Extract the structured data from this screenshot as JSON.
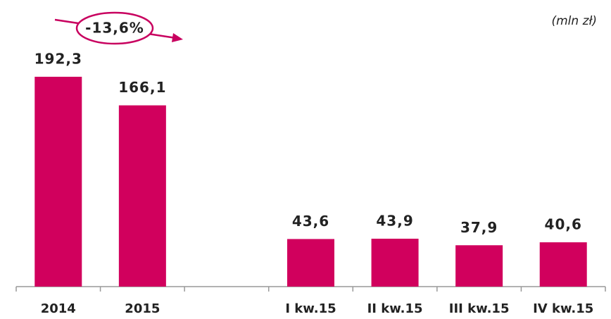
{
  "chart_data": {
    "type": "bar",
    "unit_label": "(mln zł)",
    "annotation": "-13,6%",
    "categories": [
      "2014",
      "2015",
      null,
      "I kw.15",
      "II kw.15",
      "III kw.15",
      "IV kw.15"
    ],
    "values": [
      192.3,
      166.1,
      null,
      43.6,
      43.9,
      37.9,
      40.6
    ],
    "value_labels": [
      "192,3",
      "166,1",
      null,
      "43,6",
      "43,9",
      "37,9",
      "40,6"
    ],
    "color": "#d1005d"
  }
}
